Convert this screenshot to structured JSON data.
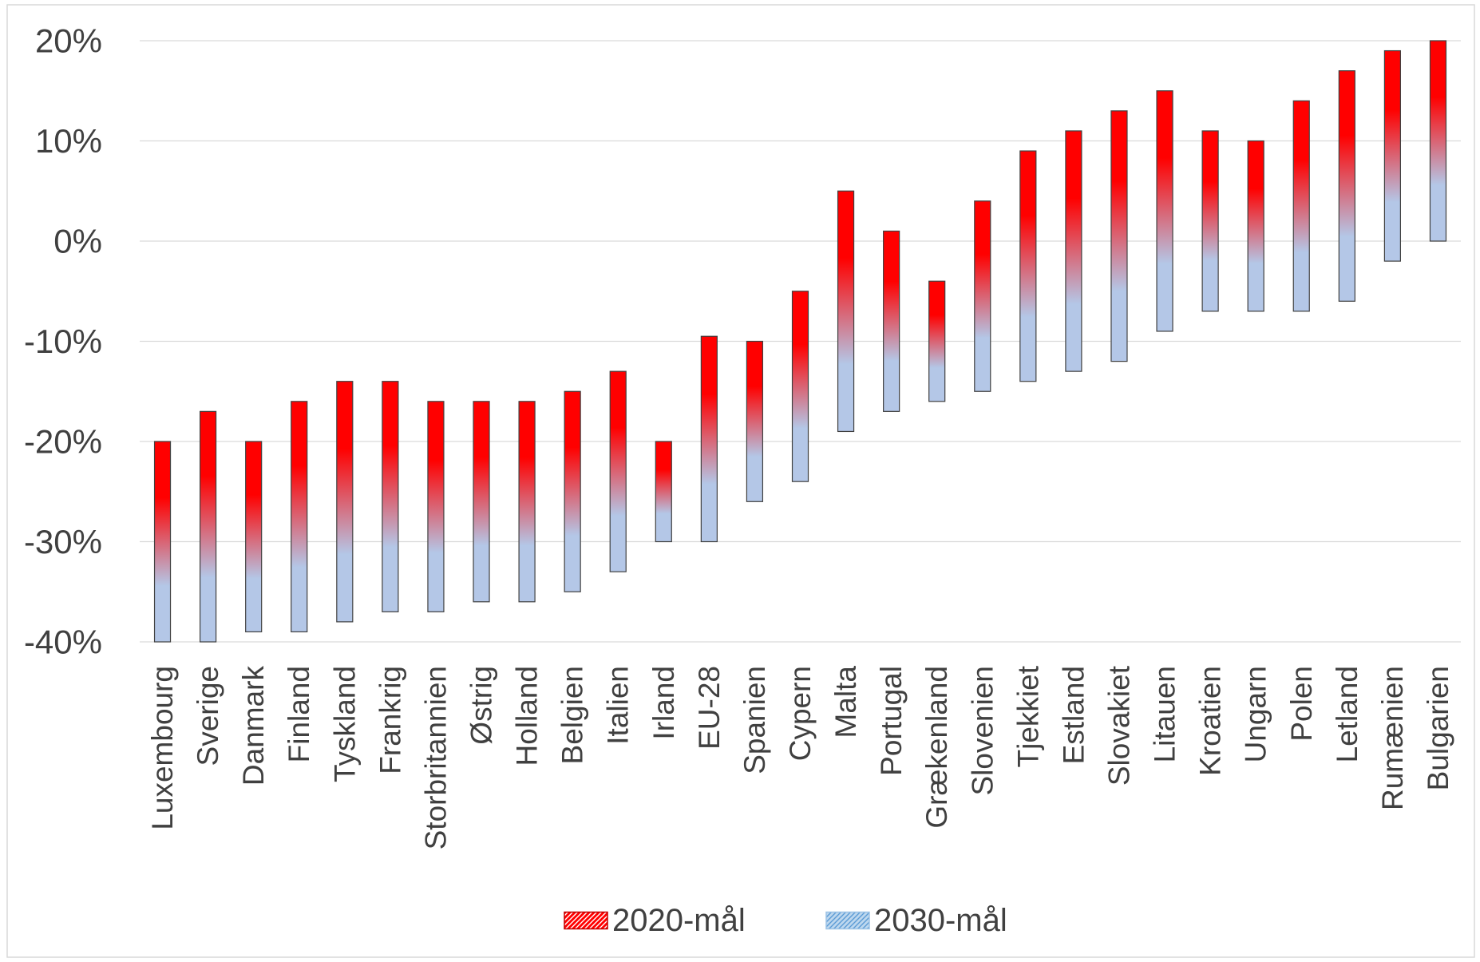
{
  "chart_data": {
    "type": "bar",
    "categories": [
      "Luxembourg",
      "Sverige",
      "Danmark",
      "Finland",
      "Tyskland",
      "Frankrig",
      "Storbritannien",
      "Østrig",
      "Holland",
      "Belgien",
      "Italien",
      "Irland",
      "EU-28",
      "Spanien",
      "Cypern",
      "Malta",
      "Portugal",
      "Grækenland",
      "Slovenien",
      "Tjekkiet",
      "Estland",
      "Slovakiet",
      "Litauen",
      "Kroatien",
      "Ungarn",
      "Polen",
      "Letland",
      "Rumænien",
      "Bulgarien"
    ],
    "series": [
      {
        "name": "2020-mål",
        "values": [
          -20,
          -17,
          -20,
          -16,
          -14,
          -14,
          -16,
          -16,
          -16,
          -15,
          -13,
          -20,
          -9.5,
          -10,
          -5,
          5,
          1,
          -4,
          4,
          9,
          11,
          13,
          15,
          11,
          10,
          14,
          17,
          19,
          20
        ]
      },
      {
        "name": "2030-mål",
        "values": [
          -40,
          -40,
          -39,
          -39,
          -38,
          -37,
          -37,
          -36,
          -36,
          -35,
          -33,
          -30,
          -30,
          -26,
          -24,
          -19,
          -17,
          -16,
          -15,
          -14,
          -13,
          -12,
          -9,
          -7,
          -7,
          -7,
          -6,
          -2,
          0
        ]
      }
    ],
    "ylim": [
      -40,
      20
    ],
    "yticks": [
      20,
      10,
      0,
      -10,
      -20,
      -30,
      -40
    ],
    "ytick_labels": [
      "20%",
      "10%",
      "0%",
      "-10%",
      "-20%",
      "-30%",
      "-40%"
    ],
    "grid": true,
    "legend": "bottom-center"
  },
  "colors": {
    "series_2020": "#ff0000",
    "series_2030": "#b4c7e7",
    "bar_outline": "#404040",
    "gridline": "#d9d9d9",
    "chart_border": "#d9d9d9",
    "text": "#404040",
    "legend_2020_hatch": "#ffffff",
    "legend_2020_border": "#c00000",
    "legend_2030_fill": "#bdd7ee",
    "legend_2030_hatch": "#5b9bd5",
    "legend_2030_border": "#9dc3e6"
  }
}
